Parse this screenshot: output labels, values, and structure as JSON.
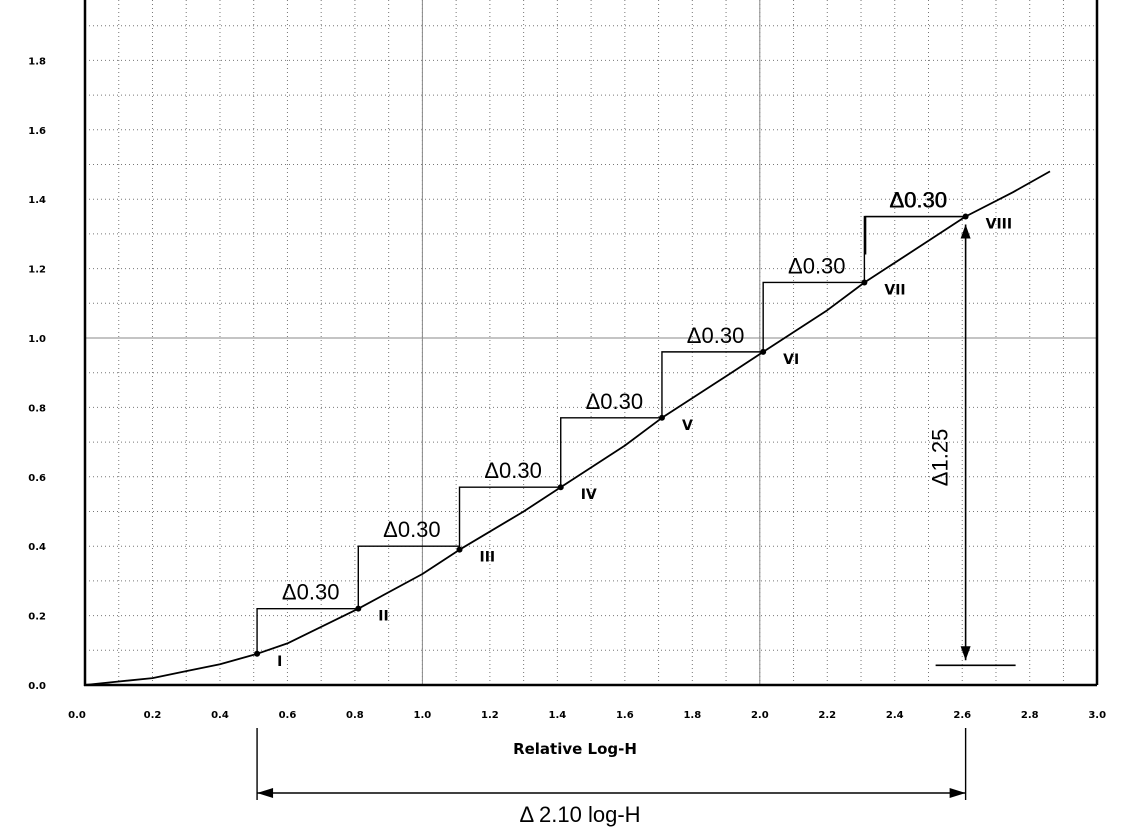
{
  "chart_data": {
    "type": "line",
    "xlabel": "Relative Log-H",
    "ylabel": "",
    "xlim": [
      0,
      3.0
    ],
    "ylim": [
      0,
      2.0
    ],
    "x_ticks": [
      0.0,
      0.2,
      0.4,
      0.6,
      0.8,
      1.0,
      1.2,
      1.4,
      1.6,
      1.8,
      2.0,
      2.2,
      2.4,
      2.6,
      2.8,
      3.0
    ],
    "x_tick_labels": [
      "0.0",
      "0.2",
      "0.4",
      "0.6",
      "0.8",
      "1.0",
      "1.2",
      "1.4",
      "1.6",
      "1.8",
      "2.0",
      "2.2",
      "2.4",
      "2.6",
      "2.8",
      "3.0"
    ],
    "y_ticks": [
      0.0,
      0.2,
      0.4,
      0.6,
      0.8,
      1.0,
      1.2,
      1.4,
      1.6,
      1.8
    ],
    "y_tick_labels": [
      "0.0",
      "0.2",
      "0.4",
      "0.6",
      "0.8",
      "1.0",
      "1.2",
      "1.4",
      "1.6",
      "1.8"
    ],
    "grid": true,
    "curve": {
      "x": [
        0.0,
        0.1,
        0.2,
        0.3,
        0.4,
        0.51,
        0.6,
        0.81,
        1.0,
        1.11,
        1.3,
        1.41,
        1.6,
        1.71,
        1.9,
        2.01,
        2.2,
        2.31,
        2.5,
        2.61,
        2.75,
        2.86
      ],
      "y": [
        0.0,
        0.01,
        0.02,
        0.04,
        0.06,
        0.09,
        0.12,
        0.22,
        0.32,
        0.39,
        0.5,
        0.57,
        0.69,
        0.77,
        0.89,
        0.96,
        1.08,
        1.16,
        1.28,
        1.35,
        1.42,
        1.48
      ]
    },
    "steps": [
      {
        "label": "I",
        "x": 0.51,
        "y": 0.09
      },
      {
        "label": "II",
        "x": 0.81,
        "y": 0.22
      },
      {
        "label": "III",
        "x": 1.11,
        "y": 0.39
      },
      {
        "label": "IV",
        "x": 1.41,
        "y": 0.57
      },
      {
        "label": "V",
        "x": 1.71,
        "y": 0.77
      },
      {
        "label": "VI",
        "x": 2.01,
        "y": 0.96
      },
      {
        "label": "VII",
        "x": 2.31,
        "y": 1.16
      },
      {
        "label": "VIII",
        "x": 2.61,
        "y": 1.35
      }
    ],
    "step_labels": [
      "Δ0.30",
      "Δ0.30",
      "Δ0.30",
      "Δ0.30",
      "Δ0.30",
      "Δ0.30",
      "Δ0.30",
      "Δ0.30"
    ],
    "step_heights": [
      0.22,
      0.4,
      0.57,
      0.77,
      0.96,
      1.16,
      1.35
    ],
    "vertical_span": {
      "label": "Δ1.25",
      "x": 2.61,
      "y_from": 0.1,
      "y_to": 1.35
    },
    "horizontal_span": {
      "label": "Δ 2.10 log-H",
      "x_from": 0.51,
      "x_to": 2.61
    }
  }
}
